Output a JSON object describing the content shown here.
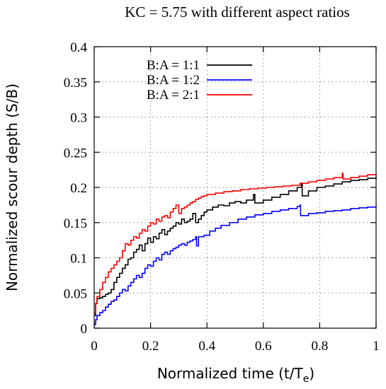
{
  "chart_data": {
    "type": "line",
    "title": "KC = 5.75 with different aspect ratios",
    "xlabel": "Normalized time (t/T",
    "xlabel_sub": "e",
    "xlabel_close": ")",
    "ylabel": "Normalized scour depth (S/B)",
    "xlim": [
      0,
      1
    ],
    "ylim": [
      0,
      0.4
    ],
    "xticks": [
      0,
      0.2,
      0.4,
      0.6,
      0.8,
      1
    ],
    "xtick_labels": [
      "0",
      "0.2",
      "0.4",
      "0.6",
      "0.8",
      "1"
    ],
    "yticks": [
      0,
      0.05,
      0.1,
      0.15,
      0.2,
      0.25,
      0.3,
      0.35,
      0.4
    ],
    "ytick_labels": [
      "0",
      "0.05",
      "0.1",
      "0.15",
      "0.2",
      "0.25",
      "0.3",
      "0.35",
      "0.4"
    ],
    "grid": true,
    "legend_position": "top-left",
    "series": [
      {
        "name": "B:A = 1:1",
        "color": "#000000",
        "x": [
          0,
          0.005,
          0.01,
          0.02,
          0.03,
          0.04,
          0.05,
          0.06,
          0.07,
          0.08,
          0.09,
          0.1,
          0.11,
          0.12,
          0.13,
          0.14,
          0.15,
          0.16,
          0.17,
          0.18,
          0.19,
          0.2,
          0.21,
          0.22,
          0.23,
          0.24,
          0.25,
          0.26,
          0.27,
          0.28,
          0.29,
          0.3,
          0.31,
          0.32,
          0.33,
          0.34,
          0.35,
          0.36,
          0.37,
          0.38,
          0.39,
          0.4,
          0.42,
          0.44,
          0.46,
          0.48,
          0.5,
          0.52,
          0.54,
          0.56,
          0.565,
          0.57,
          0.6,
          0.63,
          0.66,
          0.69,
          0.72,
          0.735,
          0.738,
          0.76,
          0.79,
          0.82,
          0.85,
          0.88,
          0.91,
          0.94,
          0.97,
          1.0
        ],
        "y": [
          0.018,
          0.035,
          0.042,
          0.043,
          0.045,
          0.048,
          0.05,
          0.055,
          0.065,
          0.072,
          0.078,
          0.085,
          0.09,
          0.098,
          0.1,
          0.108,
          0.112,
          0.118,
          0.11,
          0.12,
          0.128,
          0.122,
          0.13,
          0.127,
          0.135,
          0.14,
          0.133,
          0.138,
          0.142,
          0.145,
          0.15,
          0.148,
          0.155,
          0.15,
          0.152,
          0.155,
          0.163,
          0.15,
          0.155,
          0.16,
          0.165,
          0.168,
          0.172,
          0.175,
          0.174,
          0.178,
          0.18,
          0.178,
          0.182,
          0.182,
          0.19,
          0.178,
          0.182,
          0.186,
          0.19,
          0.195,
          0.2,
          0.205,
          0.188,
          0.195,
          0.2,
          0.202,
          0.205,
          0.208,
          0.21,
          0.211,
          0.213,
          0.215
        ]
      },
      {
        "name": "B:A = 1:2",
        "color": "#0000ff",
        "x": [
          0,
          0.005,
          0.01,
          0.02,
          0.03,
          0.04,
          0.05,
          0.06,
          0.07,
          0.08,
          0.09,
          0.1,
          0.11,
          0.12,
          0.13,
          0.14,
          0.15,
          0.16,
          0.17,
          0.18,
          0.19,
          0.2,
          0.21,
          0.22,
          0.23,
          0.24,
          0.25,
          0.26,
          0.27,
          0.28,
          0.29,
          0.3,
          0.31,
          0.32,
          0.33,
          0.34,
          0.35,
          0.36,
          0.363,
          0.37,
          0.39,
          0.41,
          0.43,
          0.45,
          0.48,
          0.51,
          0.54,
          0.57,
          0.6,
          0.63,
          0.66,
          0.69,
          0.72,
          0.73,
          0.732,
          0.76,
          0.79,
          0.82,
          0.85,
          0.88,
          0.91,
          0.94,
          0.97,
          1.0
        ],
        "y": [
          0.005,
          0.012,
          0.018,
          0.022,
          0.025,
          0.03,
          0.034,
          0.038,
          0.04,
          0.045,
          0.05,
          0.055,
          0.053,
          0.06,
          0.065,
          0.07,
          0.075,
          0.072,
          0.078,
          0.085,
          0.09,
          0.088,
          0.095,
          0.1,
          0.097,
          0.105,
          0.108,
          0.105,
          0.11,
          0.113,
          0.115,
          0.118,
          0.12,
          0.118,
          0.122,
          0.124,
          0.126,
          0.13,
          0.117,
          0.13,
          0.132,
          0.138,
          0.142,
          0.146,
          0.15,
          0.155,
          0.158,
          0.161,
          0.163,
          0.166,
          0.168,
          0.17,
          0.173,
          0.175,
          0.16,
          0.163,
          0.164,
          0.166,
          0.167,
          0.168,
          0.17,
          0.171,
          0.172,
          0.173
        ]
      },
      {
        "name": "B:A = 2:1",
        "color": "#ff0000",
        "x": [
          0,
          0.005,
          0.01,
          0.02,
          0.03,
          0.04,
          0.05,
          0.06,
          0.07,
          0.08,
          0.09,
          0.1,
          0.11,
          0.12,
          0.13,
          0.14,
          0.15,
          0.16,
          0.17,
          0.18,
          0.19,
          0.2,
          0.21,
          0.22,
          0.23,
          0.24,
          0.25,
          0.26,
          0.27,
          0.28,
          0.29,
          0.3,
          0.31,
          0.32,
          0.33,
          0.34,
          0.35,
          0.36,
          0.37,
          0.38,
          0.39,
          0.4,
          0.43,
          0.46,
          0.49,
          0.52,
          0.55,
          0.58,
          0.61,
          0.64,
          0.67,
          0.7,
          0.73,
          0.76,
          0.79,
          0.82,
          0.85,
          0.88,
          0.883,
          0.91,
          0.94,
          0.97,
          1.0
        ],
        "y": [
          0.022,
          0.035,
          0.045,
          0.055,
          0.065,
          0.072,
          0.08,
          0.085,
          0.09,
          0.095,
          0.1,
          0.11,
          0.12,
          0.118,
          0.125,
          0.13,
          0.128,
          0.135,
          0.14,
          0.138,
          0.145,
          0.15,
          0.148,
          0.155,
          0.152,
          0.158,
          0.16,
          0.157,
          0.165,
          0.17,
          0.175,
          0.163,
          0.17,
          0.172,
          0.175,
          0.178,
          0.18,
          0.183,
          0.185,
          0.187,
          0.188,
          0.19,
          0.192,
          0.194,
          0.195,
          0.197,
          0.198,
          0.199,
          0.2,
          0.201,
          0.202,
          0.203,
          0.206,
          0.208,
          0.21,
          0.212,
          0.214,
          0.22,
          0.212,
          0.214,
          0.216,
          0.218,
          0.219
        ]
      }
    ]
  }
}
